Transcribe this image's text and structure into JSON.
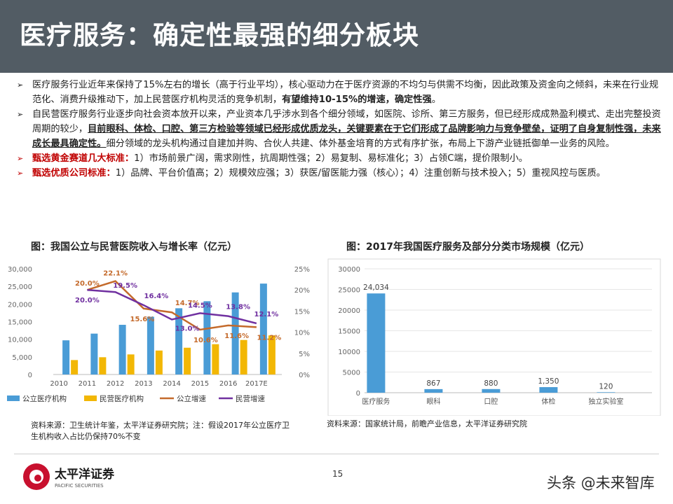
{
  "header": {
    "title": "医疗服务：确定性最强的细分板块"
  },
  "bullets": [
    {
      "parts": [
        {
          "t": "医疗服务行业近年来保持了15%左右的增长（高于行业平均），核心驱动力在于医疗资源的不均匀与供需不均衡，因此政策及资金向之倾斜，未来在行业规范化、消费升级推动下，加上民营医疗机构灵活的竞争机制，",
          "s": ""
        },
        {
          "t": "有望维持10-15%的增速，确定性强",
          "s": "bold"
        },
        {
          "t": "。",
          "s": ""
        }
      ]
    },
    {
      "parts": [
        {
          "t": "自民营医疗服务行业逐步向社会资本放开以来，产业资本几乎涉水到各个细分领域，如医院、诊所、第三方服务，但已经形成成熟盈利模式、走出完整投资周期的较少，",
          "s": ""
        },
        {
          "t": "目前眼科、体检、口腔、第三方检验等领域已经形成优质龙头，关键要素在于它们形成了品牌影响力与竞争壁垒，证明了自身复制性强，未来成长最具确定性。",
          "s": "bu"
        },
        {
          "t": "细分领域的龙头机构通过自建加并购、合伙人共建、体外基金培育的方式有序扩张，布局上下游产业链抵御单一业务的风险。",
          "s": ""
        }
      ]
    },
    {
      "red": true,
      "parts": [
        {
          "t": "甄选黄金赛道几大标准：",
          "s": "red"
        },
        {
          "t": "1）市场前景广阔，需求刚性，抗周期性强；2）易复制、易标准化；3）占领C端，提价限制小。",
          "s": ""
        }
      ]
    },
    {
      "red": true,
      "parts": [
        {
          "t": "甄选优质公司标准：",
          "s": "red"
        },
        {
          "t": "1）品牌、平台价值高；2）规模效应强；3）获医/留医能力强（核心）；4）注重创新与技术投入；5）重视风控与医质。",
          "s": ""
        }
      ]
    }
  ],
  "chart_data": [
    {
      "type": "bar",
      "title": "图：我国公立与民营医院收入与增长率（亿元）",
      "categories": [
        "2010",
        "2011",
        "2012",
        "2013",
        "2014",
        "2015",
        "2016",
        "2017E"
      ],
      "y_ticks": [
        "0",
        "5,000",
        "10,000",
        "15,000",
        "20,000",
        "25,000",
        "30,000"
      ],
      "y2_ticks": [
        "0%",
        "5%",
        "10%",
        "15%",
        "20%",
        "25%"
      ],
      "ylim": [
        0,
        30000
      ],
      "y2lim": [
        0,
        25
      ],
      "series": [
        {
          "name": "公立医疗机构",
          "kind": "bar",
          "color": "#4a9cd6",
          "values": [
            9700,
            11600,
            14100,
            16400,
            18800,
            20800,
            23300,
            25800
          ]
        },
        {
          "name": "民营医疗机构",
          "kind": "bar",
          "color": "#f2b705",
          "values": [
            4100,
            4900,
            5700,
            6800,
            7600,
            8600,
            9800,
            11100
          ]
        },
        {
          "name": "公立增速",
          "kind": "line",
          "color": "#c46a2b",
          "values": [
            null,
            20.0,
            22.1,
            15.6,
            14.7,
            10.6,
            11.6,
            11.2
          ],
          "labels": [
            null,
            "20.0%",
            "22.1%",
            "15.6%",
            "14.7%",
            "10.6%",
            "11.6%",
            "11.2%"
          ]
        },
        {
          "name": "民营增速",
          "kind": "line",
          "color": "#7030a0",
          "values": [
            null,
            20.0,
            19.5,
            16.4,
            13.0,
            14.5,
            13.8,
            12.1
          ],
          "labels": [
            null,
            "20.0%",
            "19.5%",
            "16.4%",
            "13.0%",
            "14.5%",
            "13.8%",
            "12.1%"
          ]
        }
      ],
      "legend_position": "bottom",
      "source": "资料来源：卫生统计年鉴，太平洋证券研究院；注：假设2017年公立医疗卫生机构收入占比仍保持70%不变"
    },
    {
      "type": "bar",
      "title": "图：2017年我国医疗服务及部分分类市场规模（亿元）",
      "categories": [
        "医疗服务",
        "眼科",
        "口腔",
        "体检",
        "独立实验室"
      ],
      "values": [
        24034,
        867,
        880,
        1350,
        120
      ],
      "value_labels": [
        "24,034",
        "867",
        "880",
        "1,350",
        "120"
      ],
      "y_ticks": [
        "0",
        "5000",
        "10000",
        "15000",
        "20000",
        "25000",
        "30000"
      ],
      "ylim": [
        0,
        30000
      ],
      "grid": true,
      "color": "#4a9cd6",
      "source": "资料来源：国家统计局，前瞻产业信息，太平洋证券研究院"
    }
  ],
  "footer": {
    "logo_text": "太平洋证券",
    "logo_sub": "PACIFIC SECURITIES",
    "page_number": "15",
    "watermark": "头条 @未来智库"
  }
}
